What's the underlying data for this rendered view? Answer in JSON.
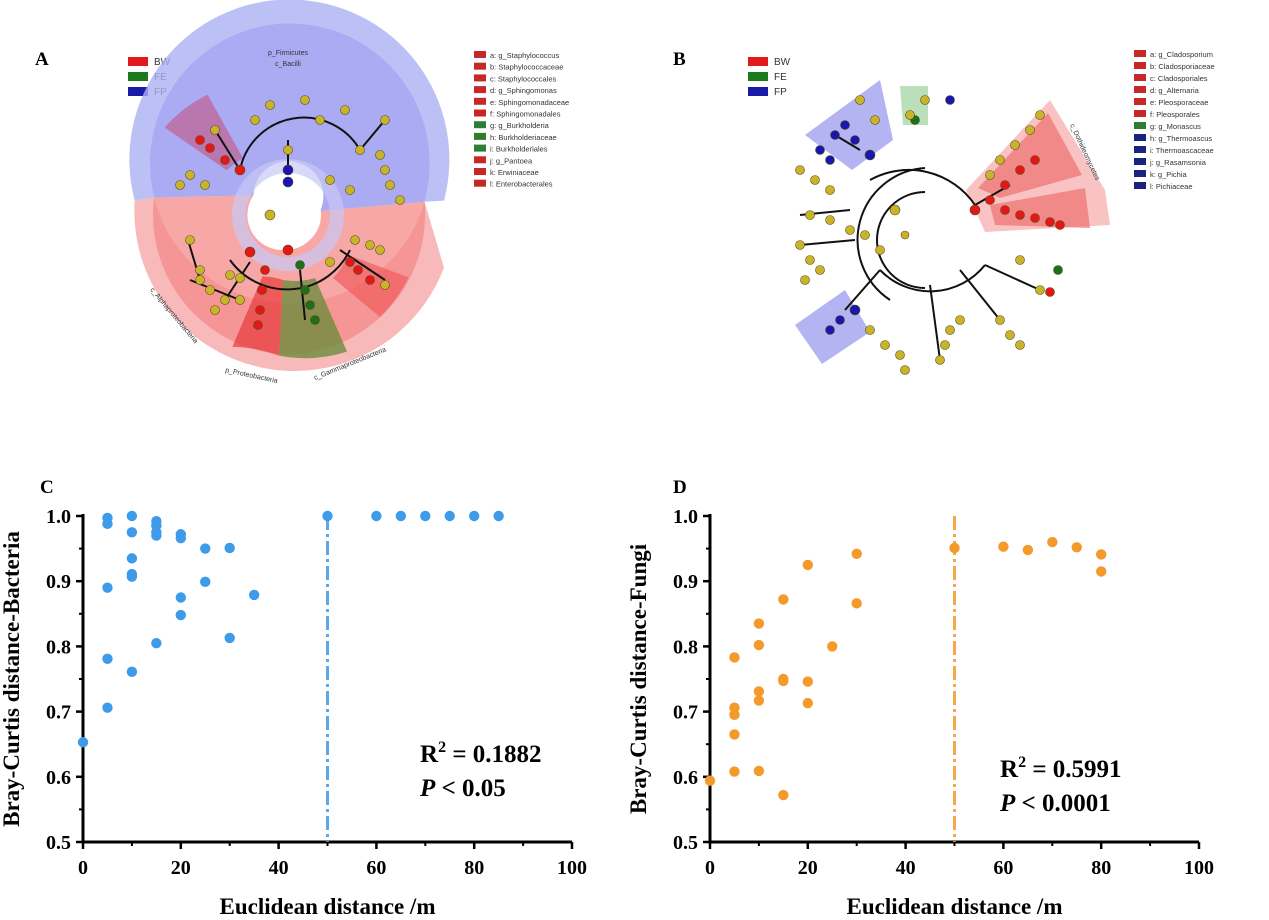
{
  "panels": {
    "A": {
      "letter": "A",
      "legend": [
        {
          "name": "BW",
          "color": "#e31a1c"
        },
        {
          "name": "FE",
          "color": "#1b7a1b"
        },
        {
          "name": "FP",
          "color": "#1a1aa8"
        }
      ],
      "taxa": [
        {
          "label": "a: g_Staphylococcus",
          "color": "#c62828"
        },
        {
          "label": "b: Staphylococcaceae",
          "color": "#c62828"
        },
        {
          "label": "c: Staphylococcales",
          "color": "#c62828"
        },
        {
          "label": "d: g_Sphingomonas",
          "color": "#c62828"
        },
        {
          "label": "e: Sphingomonadaceae",
          "color": "#c62828"
        },
        {
          "label": "f: Sphingomonadales",
          "color": "#c62828"
        },
        {
          "label": "g: g_Burkholderia",
          "color": "#2e7d32"
        },
        {
          "label": "h: Burkholderiaceae",
          "color": "#2e7d32"
        },
        {
          "label": "i: Burkholderiales",
          "color": "#2e7d32"
        },
        {
          "label": "j: g_Pantoea",
          "color": "#c62828"
        },
        {
          "label": "k: Erwiniaceae",
          "color": "#c62828"
        },
        {
          "label": "l: Enterobacterales",
          "color": "#c62828"
        }
      ],
      "arc_labels": {
        "firmicutes": "p_Firmicutes",
        "bacilli": "c_Bacilli",
        "alpha": "c_Alphaproteobacteria",
        "proteo": "p_Proteobacteria",
        "gamma": "c_Gammaproteobacteria"
      }
    },
    "B": {
      "letter": "B",
      "legend": [
        {
          "name": "BW",
          "color": "#e31a1c"
        },
        {
          "name": "FE",
          "color": "#1b7a1b"
        },
        {
          "name": "FP",
          "color": "#1a1aa8"
        }
      ],
      "taxa": [
        {
          "label": "a: g_Cladosporium",
          "color": "#c62828"
        },
        {
          "label": "b: Cladosporiaceae",
          "color": "#c62828"
        },
        {
          "label": "c: Cladosporiales",
          "color": "#c62828"
        },
        {
          "label": "d: g_Alternaria",
          "color": "#c62828"
        },
        {
          "label": "e: Pleosporaceae",
          "color": "#c62828"
        },
        {
          "label": "f: Pleosporales",
          "color": "#c62828"
        },
        {
          "label": "g: g_Monascus",
          "color": "#2e7d32"
        },
        {
          "label": "h: g_Thermoascus",
          "color": "#1a237e"
        },
        {
          "label": "i: Thermoascaceae",
          "color": "#1a237e"
        },
        {
          "label": "j: g_Rasamsonia",
          "color": "#1a237e"
        },
        {
          "label": "k: g_Pichia",
          "color": "#1a237e"
        },
        {
          "label": "l: Pichiaceae",
          "color": "#1a237e"
        }
      ],
      "arc_labels": {
        "dothideo": "c_Dothideomycetes"
      }
    },
    "C": {
      "letter": "C"
    },
    "D": {
      "letter": "D"
    }
  },
  "chart_data": [
    {
      "id": "C",
      "type": "scatter",
      "xlabel": "Euclidean distance /m",
      "ylabel": "Bray-Curtis distance-Bacteria",
      "xlim": [
        0,
        100
      ],
      "ylim": [
        0.5,
        1.0
      ],
      "xticks": [
        "0",
        "20",
        "40",
        "60",
        "80",
        "100"
      ],
      "yticks": [
        "0.5",
        "0.6",
        "0.7",
        "0.8",
        "0.9",
        "1.0"
      ],
      "color": "#3d9be9",
      "vline_x": 50,
      "stat_r2_base": "R",
      "stat_r2_sup": "2",
      "stat_r2_value": " = 0.1882",
      "stat_p_letter": "P",
      "stat_p_value": " < 0.05",
      "x": [
        0,
        5,
        5,
        5,
        5,
        5,
        10,
        10,
        10,
        10,
        10,
        10,
        15,
        15,
        15,
        15,
        15,
        20,
        20,
        20,
        20,
        25,
        25,
        30,
        30,
        35,
        50,
        60,
        65,
        70,
        75,
        80,
        85
      ],
      "y": [
        0.653,
        0.997,
        0.988,
        0.89,
        0.781,
        0.706,
        1.0,
        0.975,
        0.935,
        0.911,
        0.907,
        0.761,
        0.992,
        0.985,
        0.975,
        0.97,
        0.805,
        0.972,
        0.966,
        0.875,
        0.848,
        0.95,
        0.899,
        0.951,
        0.813,
        0.879,
        1.0,
        1.0,
        1.0,
        1.0,
        1.0,
        1.0,
        1.0
      ]
    },
    {
      "id": "D",
      "type": "scatter",
      "xlabel": "Euclidean distance /m",
      "ylabel": "Bray-Curtis distance-Fungi",
      "xlim": [
        0,
        100
      ],
      "ylim": [
        0.5,
        1.0
      ],
      "xticks": [
        "0",
        "20",
        "40",
        "60",
        "80",
        "100"
      ],
      "yticks": [
        "0.5",
        "0.6",
        "0.7",
        "0.8",
        "0.9",
        "1.0"
      ],
      "color": "#f39a2b",
      "vline_x": 50,
      "stat_r2_base": "R",
      "stat_r2_sup": "2",
      "stat_r2_value": " = 0.5991",
      "stat_p_letter": "P",
      "stat_p_value": " < 0.0001",
      "x": [
        0,
        5,
        5,
        5,
        5,
        5,
        10,
        10,
        10,
        10,
        10,
        15,
        15,
        15,
        15,
        20,
        20,
        20,
        25,
        30,
        30,
        50,
        60,
        65,
        70,
        75,
        80,
        80
      ],
      "y": [
        0.594,
        0.783,
        0.706,
        0.695,
        0.665,
        0.608,
        0.835,
        0.802,
        0.731,
        0.717,
        0.609,
        0.872,
        0.75,
        0.747,
        0.572,
        0.925,
        0.746,
        0.713,
        0.8,
        0.942,
        0.866,
        0.951,
        0.953,
        0.948,
        0.96,
        0.952,
        0.941,
        0.915
      ]
    }
  ]
}
